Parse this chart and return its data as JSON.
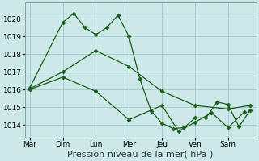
{
  "background_color": "#cce8e8",
  "grid_color": "#aacccc",
  "line_color": "#1a5c1a",
  "marker_color": "#1a5c1a",
  "xlabel": "Pression niveau de la mer( hPa )",
  "xlabel_fontsize": 8,
  "ylim": [
    1013.3,
    1020.9
  ],
  "yticks": [
    1014,
    1015,
    1016,
    1017,
    1018,
    1019,
    1020
  ],
  "day_labels": [
    "Mar",
    "Dim",
    "Lun",
    "Mer",
    "Jeu",
    "Ven",
    "Sam"
  ],
  "day_positions": [
    0,
    1,
    2,
    3,
    4,
    5,
    6
  ],
  "xlim": [
    -0.15,
    6.85
  ],
  "series1": {
    "x": [
      0.0,
      1.0,
      1.33,
      1.67,
      2.0,
      2.33,
      2.67,
      3.0,
      3.33,
      3.67,
      4.0,
      4.33,
      4.67,
      5.0,
      5.33,
      5.67,
      6.0,
      6.33,
      6.67
    ],
    "y": [
      1016.1,
      1019.8,
      1020.3,
      1019.5,
      1019.1,
      1019.5,
      1020.2,
      1019.0,
      1016.6,
      1014.8,
      1014.1,
      1013.8,
      1013.85,
      1014.4,
      1014.4,
      1015.3,
      1015.15,
      1013.9,
      1014.85
    ]
  },
  "series2": {
    "x": [
      0.0,
      1.0,
      2.0,
      3.0,
      4.0,
      5.0,
      6.0,
      6.67
    ],
    "y": [
      1016.05,
      1017.0,
      1018.2,
      1017.3,
      1015.9,
      1015.1,
      1014.9,
      1015.1
    ]
  },
  "series3": {
    "x": [
      0.0,
      1.0,
      2.0,
      3.0,
      4.0,
      4.5,
      5.0,
      5.5,
      6.0,
      6.5
    ],
    "y": [
      1016.0,
      1016.7,
      1015.9,
      1014.3,
      1015.1,
      1013.65,
      1014.15,
      1014.7,
      1013.85,
      1014.75
    ]
  }
}
